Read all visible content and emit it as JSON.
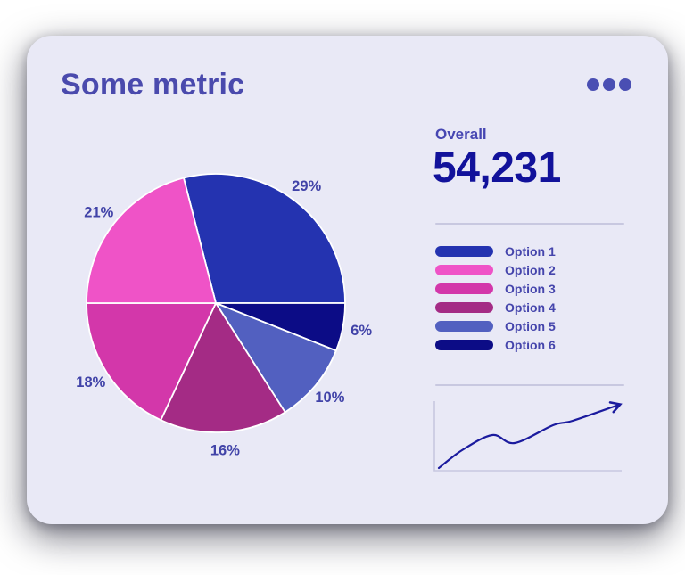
{
  "card": {
    "title": "Some metric"
  },
  "overall": {
    "label": "Overall",
    "value": "54,231"
  },
  "legend": {
    "items": [
      {
        "label": "Option 1",
        "color": "#2433b0"
      },
      {
        "label": "Option 2",
        "color": "#ef53c7"
      },
      {
        "label": "Option 3",
        "color": "#d337aa"
      },
      {
        "label": "Option 4",
        "color": "#a42b85"
      },
      {
        "label": "Option 5",
        "color": "#5260c0"
      },
      {
        "label": "Option 6",
        "color": "#0c0c86"
      }
    ]
  },
  "chart_data": [
    {
      "type": "pie",
      "title": "Some metric",
      "start_angle_deg": -14.4,
      "slices_clockwise": [
        {
          "name": "Option 1",
          "value": 29,
          "pct_label": "29%",
          "color": "#2433b0"
        },
        {
          "name": "Option 6",
          "value": 6,
          "pct_label": "6%",
          "color": "#0c0c86"
        },
        {
          "name": "Option 5",
          "value": 10,
          "pct_label": "10%",
          "color": "#5260c0"
        },
        {
          "name": "Option 4",
          "value": 16,
          "pct_label": "16%",
          "color": "#a42b85"
        },
        {
          "name": "Option 3",
          "value": 18,
          "pct_label": "18%",
          "color": "#d337aa"
        },
        {
          "name": "Option 2",
          "value": 21,
          "pct_label": "21%",
          "color": "#ef53c7"
        }
      ],
      "legend_position": "right",
      "data_labels_outside": true
    },
    {
      "type": "line",
      "name": "trend-sparkline",
      "description": "upward trend line with mid dip and arrow end",
      "points": [
        [
          12,
          82
        ],
        [
          38,
          62
        ],
        [
          72,
          45
        ],
        [
          97,
          54
        ],
        [
          140,
          34
        ],
        [
          162,
          29
        ],
        [
          214,
          11
        ]
      ],
      "axes": "plain L-frame, no ticks, no labels",
      "arrow_end": true
    }
  ],
  "colors": {
    "card_bg": "#e9e9f6",
    "title": "#4a4aad",
    "menu_dots": "#4a4fb3",
    "overall_label": "#4646b2",
    "overall_value": "#12129b",
    "legend_text": "#4545ac",
    "pct_label": "#4143a8",
    "divider": "#c8c8e0",
    "spark_line": "#1b1b9e",
    "spark_axis": "#c8c8e0",
    "pie_separator": "#ffffff"
  }
}
